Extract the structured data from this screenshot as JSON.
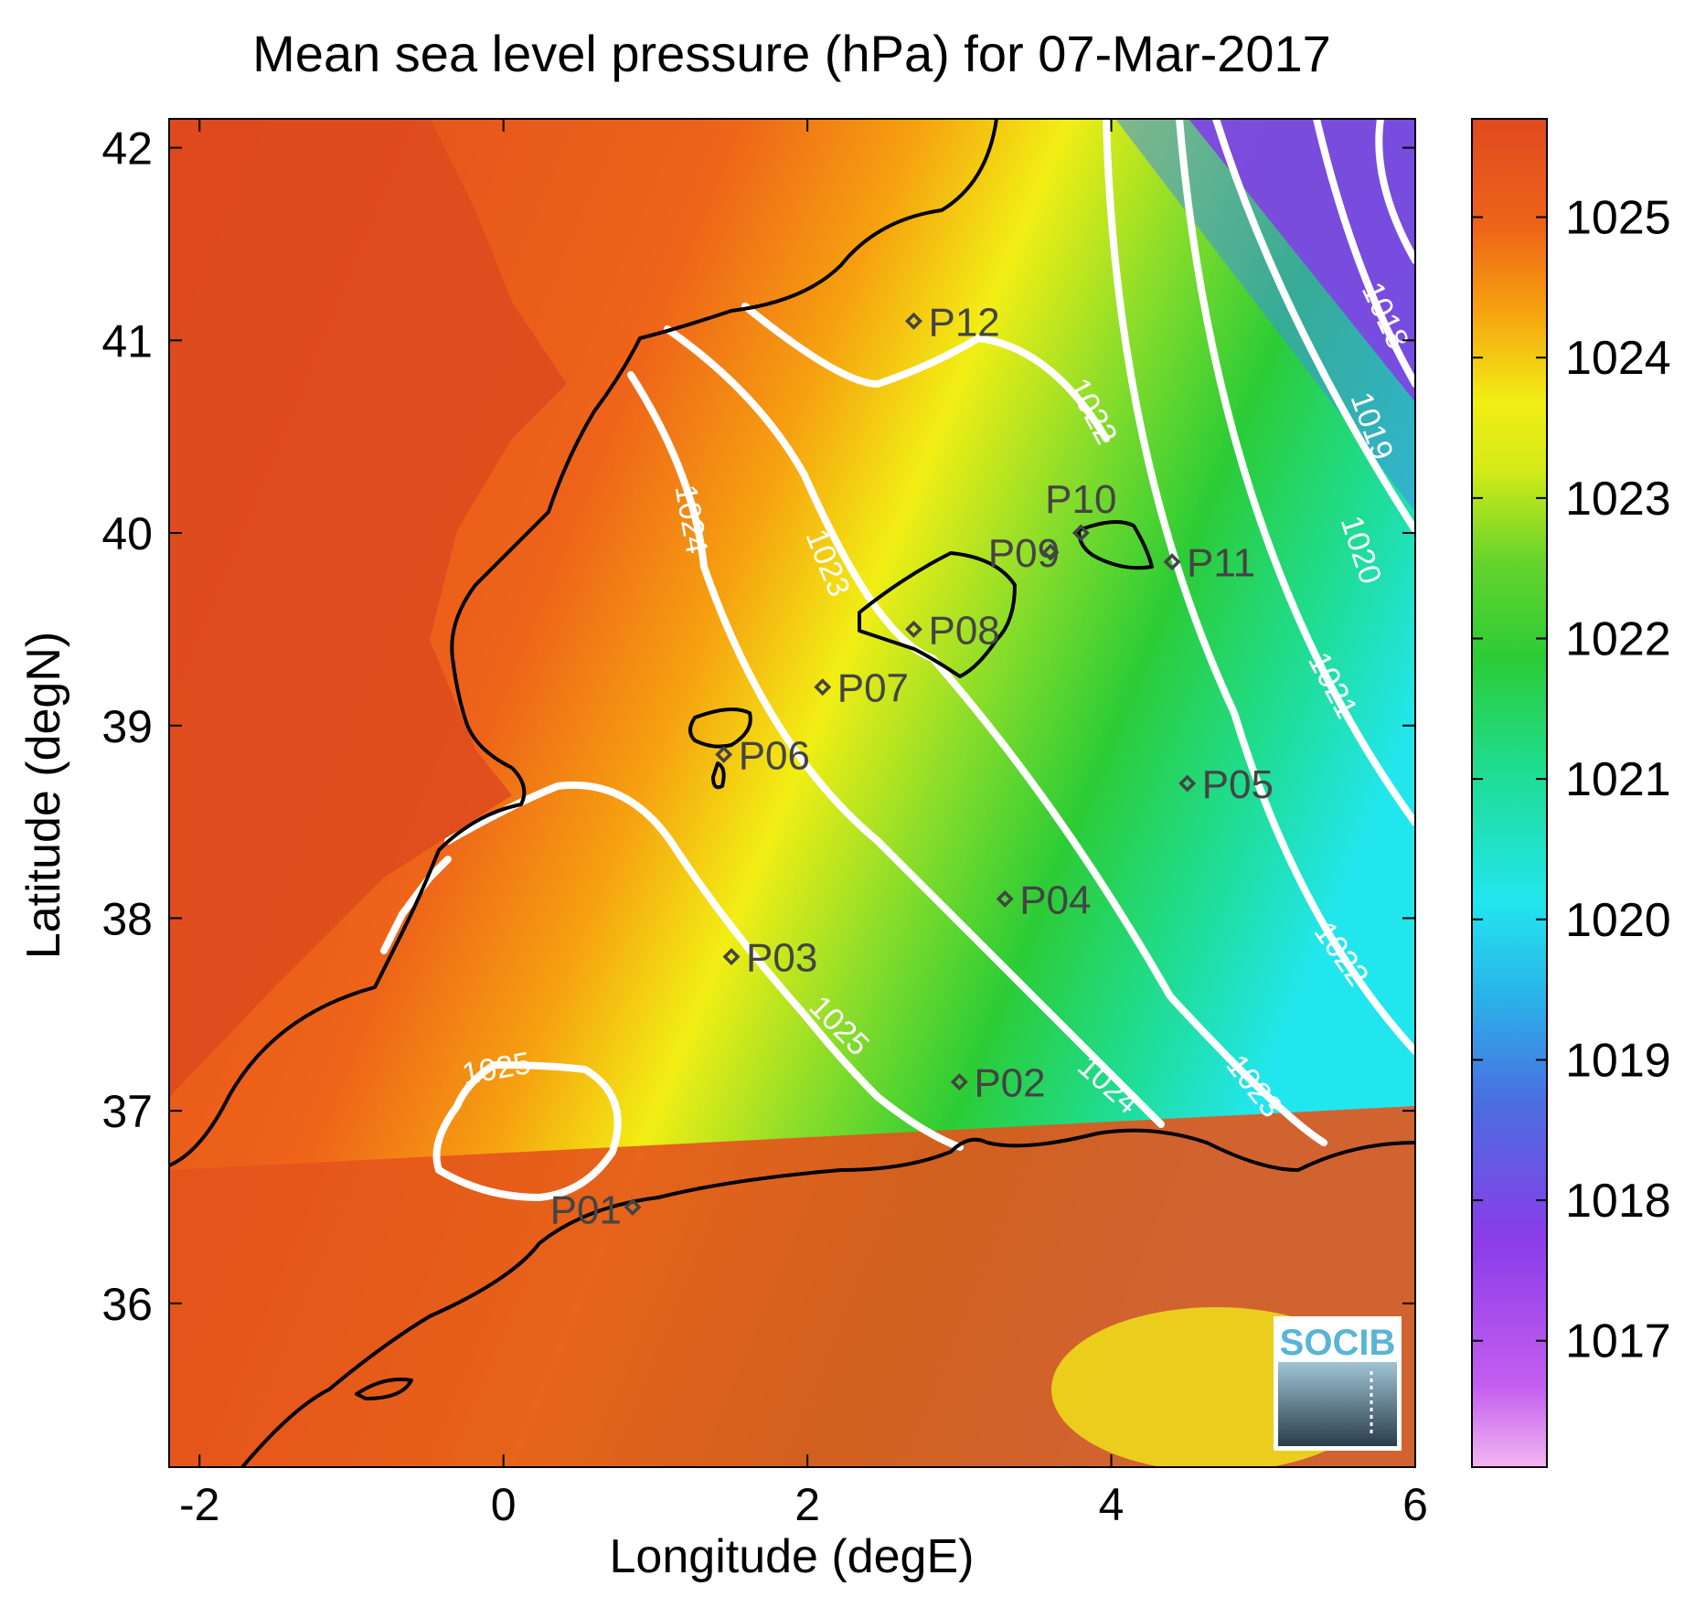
{
  "title": "Mean sea level pressure (hPa) for 07-Mar-2017",
  "chart_data": {
    "type": "heatmap",
    "title": "Mean sea level pressure (hPa) for 07-Mar-2017",
    "xlabel": "Longitude (degE)",
    "ylabel": "Latitude (degN)",
    "xlim": [
      -2.2,
      6
    ],
    "ylim": [
      35.15,
      42.15
    ],
    "x_ticks": [
      "-2",
      "0",
      "2",
      "4",
      "6"
    ],
    "y_ticks": [
      "36",
      "37",
      "38",
      "39",
      "40",
      "41",
      "42"
    ],
    "colorbar": {
      "ticks": [
        "1017",
        "1018",
        "1019",
        "1020",
        "1021",
        "1022",
        "1023",
        "1024",
        "1025"
      ],
      "range": [
        1016.1,
        1025.7
      ]
    },
    "contour_labels": [
      "1018",
      "1019",
      "1020",
      "1021",
      "1022",
      "1023",
      "1024",
      "1025",
      "1022",
      "1023",
      "1024",
      "1025",
      "1025"
    ],
    "stations": [
      {
        "name": "P01",
        "lon": 0.85,
        "lat": 36.5
      },
      {
        "name": "P02",
        "lon": 3.0,
        "lat": 37.15
      },
      {
        "name": "P03",
        "lon": 1.5,
        "lat": 37.8
      },
      {
        "name": "P04",
        "lon": 3.3,
        "lat": 38.1
      },
      {
        "name": "P05",
        "lon": 4.5,
        "lat": 38.7
      },
      {
        "name": "P06",
        "lon": 1.45,
        "lat": 38.85
      },
      {
        "name": "P07",
        "lon": 2.1,
        "lat": 39.2
      },
      {
        "name": "P08",
        "lon": 2.7,
        "lat": 39.5
      },
      {
        "name": "P09",
        "lon": 3.6,
        "lat": 39.9
      },
      {
        "name": "P10",
        "lon": 3.8,
        "lat": 40.0
      },
      {
        "name": "P11",
        "lon": 4.4,
        "lat": 39.85
      },
      {
        "name": "P12",
        "lon": 2.7,
        "lat": 41.1
      }
    ]
  },
  "colors": {
    "land_orange": "#e14a1e",
    "yellow": "#f5f012",
    "green": "#2dcf35",
    "cyan": "#20e6ee",
    "violet": "#8a3ce8",
    "coast": "#000000",
    "contour": "#ffffff"
  },
  "logo": {
    "text": "SOCIB"
  }
}
